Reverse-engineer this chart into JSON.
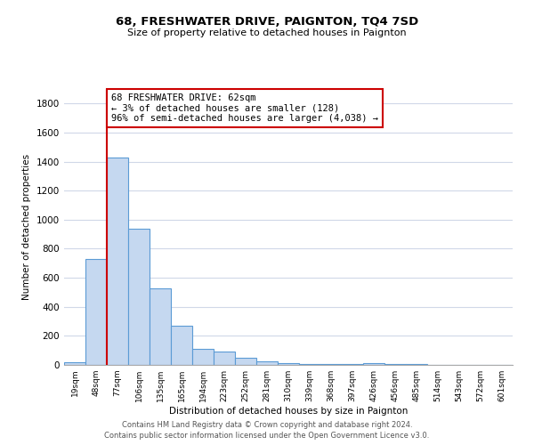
{
  "title": "68, FRESHWATER DRIVE, PAIGNTON, TQ4 7SD",
  "subtitle": "Size of property relative to detached houses in Paignton",
  "xlabel": "Distribution of detached houses by size in Paignton",
  "ylabel": "Number of detached properties",
  "footnote1": "Contains HM Land Registry data © Crown copyright and database right 2024.",
  "footnote2": "Contains public sector information licensed under the Open Government Licence v3.0.",
  "categories": [
    "19sqm",
    "48sqm",
    "77sqm",
    "106sqm",
    "135sqm",
    "165sqm",
    "194sqm",
    "223sqm",
    "252sqm",
    "281sqm",
    "310sqm",
    "339sqm",
    "368sqm",
    "397sqm",
    "426sqm",
    "456sqm",
    "485sqm",
    "514sqm",
    "543sqm",
    "572sqm",
    "601sqm"
  ],
  "values": [
    20,
    730,
    1430,
    940,
    530,
    270,
    110,
    95,
    50,
    25,
    15,
    5,
    5,
    5,
    15,
    5,
    5,
    0,
    0,
    0,
    0
  ],
  "bar_color": "#c5d8f0",
  "bar_edge_color": "#5b9bd5",
  "property_line_color": "#cc0000",
  "annotation_line1": "68 FRESHWATER DRIVE: 62sqm",
  "annotation_line2": "← 3% of detached houses are smaller (128)",
  "annotation_line3": "96% of semi-detached houses are larger (4,038) →",
  "annotation_box_color": "#cc0000",
  "ylim": [
    0,
    1900
  ],
  "yticks": [
    0,
    200,
    400,
    600,
    800,
    1000,
    1200,
    1400,
    1600,
    1800
  ],
  "background_color": "#ffffff",
  "grid_color": "#d0d8e8"
}
